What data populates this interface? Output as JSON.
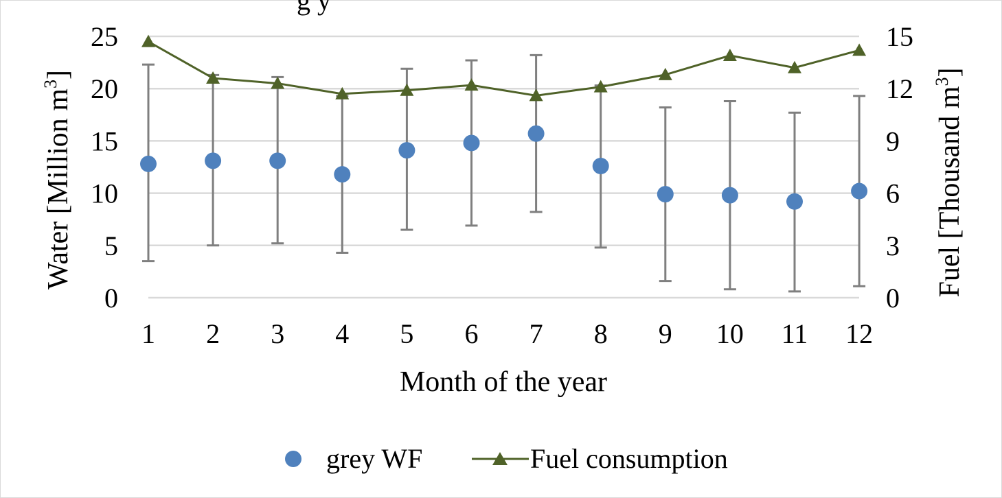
{
  "chart_data": {
    "type": "scatter+line",
    "title_fragment": "g         y",
    "xlabel": "Month of the year",
    "ylabel_left": "Water [Million m³]",
    "ylabel_right": "Fuel [Thousand m³]",
    "ylabel_left_base": "Water [Million m",
    "ylabel_right_base": "Fuel [Thousand m",
    "ylabel_sup": "3",
    "ylabel_close": "]",
    "categories": [
      "1",
      "2",
      "3",
      "4",
      "5",
      "6",
      "7",
      "8",
      "9",
      "10",
      "11",
      "12"
    ],
    "ylim_left": [
      0,
      25
    ],
    "yticks_left": [
      "0",
      "5",
      "10",
      "15",
      "20",
      "25"
    ],
    "ylim_right": [
      0,
      15
    ],
    "yticks_right": [
      "0",
      "3",
      "6",
      "9",
      "12",
      "15"
    ],
    "grid": true,
    "legend_position": "bottom",
    "series": [
      {
        "name": "grey WF",
        "axis": "left",
        "marker": "circle",
        "color": "#4f81bd",
        "values": [
          12.8,
          13.1,
          13.1,
          11.8,
          14.1,
          14.8,
          15.7,
          12.6,
          9.9,
          9.8,
          9.2,
          10.2
        ],
        "error_low": [
          3.5,
          5.0,
          5.2,
          4.3,
          6.5,
          6.9,
          8.2,
          4.8,
          1.6,
          0.8,
          0.6,
          1.1
        ],
        "error_high": [
          22.3,
          21.3,
          21.1,
          19.3,
          21.9,
          22.7,
          23.2,
          20.3,
          18.2,
          18.8,
          17.7,
          19.3
        ]
      },
      {
        "name": "Fuel consumption",
        "axis": "right",
        "marker": "triangle",
        "color": "#4f6228",
        "values": [
          14.7,
          12.6,
          12.3,
          11.7,
          11.9,
          12.2,
          11.6,
          12.1,
          12.8,
          13.9,
          13.2,
          14.2
        ]
      }
    ]
  },
  "legend": {
    "items": [
      {
        "label": "grey WF"
      },
      {
        "label": "Fuel consumption"
      }
    ]
  }
}
